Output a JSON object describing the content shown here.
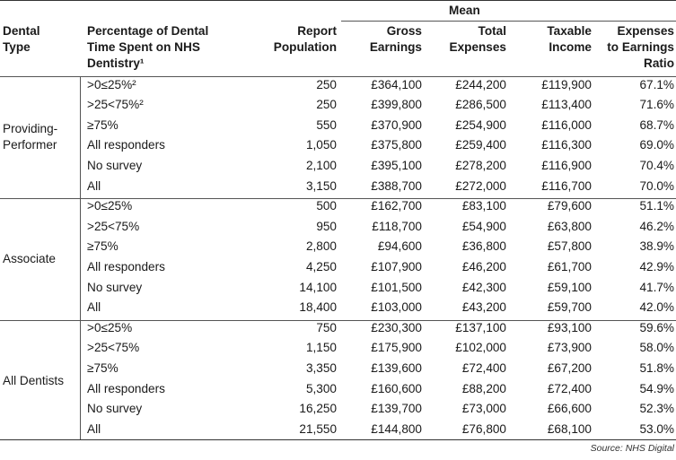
{
  "header": {
    "mean": "Mean",
    "col_type": [
      "Dental",
      "Type"
    ],
    "col_pct": [
      "Percentage of Dental",
      "Time Spent on NHS",
      "Dentistry¹"
    ],
    "col_pop": [
      "Report",
      "Population"
    ],
    "col_gross": [
      "Gross",
      "Earnings"
    ],
    "col_exp": [
      "Total",
      "Expenses"
    ],
    "col_tax": [
      "Taxable",
      "Income"
    ],
    "col_ratio": [
      "Expenses",
      "to Earnings",
      "Ratio"
    ]
  },
  "groups": [
    {
      "label": [
        "Providing-",
        "Performer"
      ],
      "rows": [
        {
          "pct": ">0≤25%²",
          "pop": "250",
          "gross": "£364,100",
          "exp": "£244,200",
          "tax": "£119,900",
          "ratio": "67.1%"
        },
        {
          "pct": ">25<75%²",
          "pop": "250",
          "gross": "£399,800",
          "exp": "£286,500",
          "tax": "£113,400",
          "ratio": "71.6%"
        },
        {
          "pct": "≥75%",
          "pop": "550",
          "gross": "£370,900",
          "exp": "£254,900",
          "tax": "£116,000",
          "ratio": "68.7%"
        },
        {
          "pct": "All responders",
          "pop": "1,050",
          "gross": "£375,800",
          "exp": "£259,400",
          "tax": "£116,300",
          "ratio": "69.0%"
        },
        {
          "pct": "No survey",
          "pop": "2,100",
          "gross": "£395,100",
          "exp": "£278,200",
          "tax": "£116,900",
          "ratio": "70.4%"
        },
        {
          "pct": "All",
          "pop": "3,150",
          "gross": "£388,700",
          "exp": "£272,000",
          "tax": "£116,700",
          "ratio": "70.0%"
        }
      ]
    },
    {
      "label": [
        "Associate"
      ],
      "rows": [
        {
          "pct": ">0≤25%",
          "pop": "500",
          "gross": "£162,700",
          "exp": "£83,100",
          "tax": "£79,600",
          "ratio": "51.1%"
        },
        {
          "pct": ">25<75%",
          "pop": "950",
          "gross": "£118,700",
          "exp": "£54,900",
          "tax": "£63,800",
          "ratio": "46.2%"
        },
        {
          "pct": "≥75%",
          "pop": "2,800",
          "gross": "£94,600",
          "exp": "£36,800",
          "tax": "£57,800",
          "ratio": "38.9%"
        },
        {
          "pct": "All responders",
          "pop": "4,250",
          "gross": "£107,900",
          "exp": "£46,200",
          "tax": "£61,700",
          "ratio": "42.9%"
        },
        {
          "pct": "No survey",
          "pop": "14,100",
          "gross": "£101,500",
          "exp": "£42,300",
          "tax": "£59,100",
          "ratio": "41.7%"
        },
        {
          "pct": "All",
          "pop": "18,400",
          "gross": "£103,000",
          "exp": "£43,200",
          "tax": "£59,700",
          "ratio": "42.0%"
        }
      ]
    },
    {
      "label": [
        "All Dentists"
      ],
      "rows": [
        {
          "pct": ">0≤25%",
          "pop": "750",
          "gross": "£230,300",
          "exp": "£137,100",
          "tax": "£93,100",
          "ratio": "59.6%"
        },
        {
          "pct": ">25<75%",
          "pop": "1,150",
          "gross": "£175,900",
          "exp": "£102,000",
          "tax": "£73,900",
          "ratio": "58.0%"
        },
        {
          "pct": "≥75%",
          "pop": "3,350",
          "gross": "£139,600",
          "exp": "£72,400",
          "tax": "£67,200",
          "ratio": "51.8%"
        },
        {
          "pct": "All responders",
          "pop": "5,300",
          "gross": "£160,600",
          "exp": "£88,200",
          "tax": "£72,400",
          "ratio": "54.9%"
        },
        {
          "pct": "No survey",
          "pop": "16,250",
          "gross": "£139,700",
          "exp": "£73,000",
          "tax": "£66,600",
          "ratio": "52.3%"
        },
        {
          "pct": "All",
          "pop": "21,550",
          "gross": "£144,800",
          "exp": "£76,800",
          "tax": "£68,100",
          "ratio": "53.0%"
        }
      ]
    }
  ],
  "source": "Source: NHS Digital"
}
